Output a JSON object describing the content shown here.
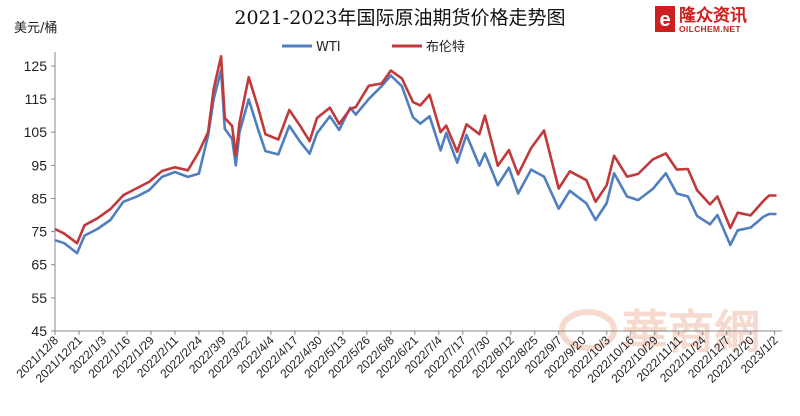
{
  "chart_data": {
    "type": "line",
    "title": "2021-2023年国际原油期货价格走势图",
    "ylabel": "美元/桶",
    "ylim": [
      45,
      128
    ],
    "yticks": [
      45,
      55,
      65,
      75,
      85,
      95,
      105,
      115,
      125
    ],
    "grid": false,
    "legend": "top-center",
    "x_tick_labels": [
      "2021/12/8",
      "2021/12/21",
      "2022/1/3",
      "2022/1/16",
      "2022/1/29",
      "2022/2/11",
      "2022/2/24",
      "2022/3/9",
      "2022/3/22",
      "2022/4/4",
      "2022/4/17",
      "2022/4/30",
      "2022/5/13",
      "2022/5/26",
      "2022/6/8",
      "2022/6/21",
      "2022/7/4",
      "2022/7/17",
      "2022/7/30",
      "2022/8/12",
      "2022/8/25",
      "2022/9/7",
      "2022/9/20",
      "2022/10/3",
      "2022/10/16",
      "2022/10/29",
      "2022/11/11",
      "2022/11/24",
      "2022/12/7",
      "2022/12/20",
      "2023/1/2"
    ],
    "x_start": "2021-12-08",
    "series": [
      {
        "name": "WTI",
        "color": "#4f7ec1",
        "points": [
          [
            "2021-12-08",
            72.4
          ],
          [
            "2021-12-13",
            71.5
          ],
          [
            "2021-12-20",
            68.5
          ],
          [
            "2021-12-24",
            73.8
          ],
          [
            "2021-12-31",
            75.8
          ],
          [
            "2022-01-07",
            78.5
          ],
          [
            "2022-01-14",
            84
          ],
          [
            "2022-01-21",
            85.5
          ],
          [
            "2022-01-28",
            87.5
          ],
          [
            "2022-02-04",
            91.5
          ],
          [
            "2022-02-11",
            93
          ],
          [
            "2022-02-18",
            91.5
          ],
          [
            "2022-02-24",
            92.5
          ],
          [
            "2022-03-01",
            104
          ],
          [
            "2022-03-04",
            115
          ],
          [
            "2022-03-08",
            123.7
          ],
          [
            "2022-03-10",
            106
          ],
          [
            "2022-03-14",
            103
          ],
          [
            "2022-03-16",
            95
          ],
          [
            "2022-03-18",
            105
          ],
          [
            "2022-03-23",
            114.9
          ],
          [
            "2022-03-28",
            105.9
          ],
          [
            "2022-04-01",
            99.3
          ],
          [
            "2022-04-08",
            98.3
          ],
          [
            "2022-04-14",
            106.9
          ],
          [
            "2022-04-20",
            102
          ],
          [
            "2022-04-25",
            98.5
          ],
          [
            "2022-04-29",
            104.7
          ],
          [
            "2022-05-06",
            109.8
          ],
          [
            "2022-05-11",
            105.7
          ],
          [
            "2022-05-17",
            112.4
          ],
          [
            "2022-05-20",
            110.3
          ],
          [
            "2022-05-27",
            115
          ],
          [
            "2022-06-03",
            118.9
          ],
          [
            "2022-06-08",
            122.1
          ],
          [
            "2022-06-14",
            118.9
          ],
          [
            "2022-06-20",
            109.5
          ],
          [
            "2022-06-24",
            107.6
          ],
          [
            "2022-06-29",
            109.8
          ],
          [
            "2022-07-05",
            99.5
          ],
          [
            "2022-07-08",
            104.8
          ],
          [
            "2022-07-14",
            95.8
          ],
          [
            "2022-07-19",
            104.2
          ],
          [
            "2022-07-26",
            94.9
          ],
          [
            "2022-07-29",
            98.6
          ],
          [
            "2022-08-05",
            89
          ],
          [
            "2022-08-11",
            94.3
          ],
          [
            "2022-08-16",
            86.5
          ],
          [
            "2022-08-23",
            93.7
          ],
          [
            "2022-08-30",
            91.6
          ],
          [
            "2022-09-07",
            81.9
          ],
          [
            "2022-09-13",
            87.3
          ],
          [
            "2022-09-22",
            83.5
          ],
          [
            "2022-09-27",
            78.5
          ],
          [
            "2022-10-03",
            83.6
          ],
          [
            "2022-10-07",
            92.6
          ],
          [
            "2022-10-14",
            85.6
          ],
          [
            "2022-10-20",
            84.5
          ],
          [
            "2022-10-28",
            87.9
          ],
          [
            "2022-11-04",
            92.6
          ],
          [
            "2022-11-10",
            86.5
          ],
          [
            "2022-11-16",
            85.6
          ],
          [
            "2022-11-21",
            79.7
          ],
          [
            "2022-11-28",
            77.2
          ],
          [
            "2022-12-02",
            80
          ],
          [
            "2022-12-09",
            71
          ],
          [
            "2022-12-13",
            75.4
          ],
          [
            "2022-12-20",
            76.2
          ],
          [
            "2022-12-27",
            79.5
          ],
          [
            "2022-12-30",
            80.3
          ],
          [
            "2023-01-03",
            80.3
          ]
        ]
      },
      {
        "name": "布伦特",
        "color": "#c0393b",
        "points": [
          [
            "2021-12-08",
            75.8
          ],
          [
            "2021-12-13",
            74.4
          ],
          [
            "2021-12-20",
            71.5
          ],
          [
            "2021-12-24",
            76.9
          ],
          [
            "2021-12-31",
            79
          ],
          [
            "2022-01-07",
            81.8
          ],
          [
            "2022-01-14",
            86
          ],
          [
            "2022-01-21",
            88
          ],
          [
            "2022-01-28",
            90
          ],
          [
            "2022-02-04",
            93.3
          ],
          [
            "2022-02-11",
            94.4
          ],
          [
            "2022-02-18",
            93.5
          ],
          [
            "2022-02-24",
            99.1
          ],
          [
            "2022-03-01",
            105
          ],
          [
            "2022-03-04",
            118.1
          ],
          [
            "2022-03-08",
            127.9
          ],
          [
            "2022-03-10",
            109.3
          ],
          [
            "2022-03-14",
            106.9
          ],
          [
            "2022-03-16",
            98
          ],
          [
            "2022-03-18",
            107.9
          ],
          [
            "2022-03-23",
            121.6
          ],
          [
            "2022-03-28",
            112.5
          ],
          [
            "2022-04-01",
            104.4
          ],
          [
            "2022-04-08",
            102.8
          ],
          [
            "2022-04-14",
            111.7
          ],
          [
            "2022-04-20",
            106.8
          ],
          [
            "2022-04-25",
            102.3
          ],
          [
            "2022-04-29",
            109.3
          ],
          [
            "2022-05-06",
            112.4
          ],
          [
            "2022-05-11",
            107.5
          ],
          [
            "2022-05-17",
            112
          ],
          [
            "2022-05-20",
            112.6
          ],
          [
            "2022-05-27",
            119
          ],
          [
            "2022-06-03",
            119.7
          ],
          [
            "2022-06-08",
            123.6
          ],
          [
            "2022-06-14",
            121.2
          ],
          [
            "2022-06-20",
            114.1
          ],
          [
            "2022-06-24",
            113.1
          ],
          [
            "2022-06-29",
            116.3
          ],
          [
            "2022-07-05",
            105
          ],
          [
            "2022-07-08",
            107
          ],
          [
            "2022-07-14",
            99.1
          ],
          [
            "2022-07-19",
            107.4
          ],
          [
            "2022-07-26",
            104.4
          ],
          [
            "2022-07-29",
            110
          ],
          [
            "2022-08-05",
            94.9
          ],
          [
            "2022-08-11",
            99.6
          ],
          [
            "2022-08-16",
            92.3
          ],
          [
            "2022-08-23",
            100.2
          ],
          [
            "2022-08-30",
            105.5
          ],
          [
            "2022-09-07",
            88
          ],
          [
            "2022-09-13",
            93.2
          ],
          [
            "2022-09-22",
            90.5
          ],
          [
            "2022-09-27",
            84
          ],
          [
            "2022-10-03",
            89
          ],
          [
            "2022-10-07",
            97.9
          ],
          [
            "2022-10-14",
            91.6
          ],
          [
            "2022-10-20",
            92.4
          ],
          [
            "2022-10-28",
            96.8
          ],
          [
            "2022-11-04",
            98.6
          ],
          [
            "2022-11-10",
            93.7
          ],
          [
            "2022-11-16",
            93.9
          ],
          [
            "2022-11-21",
            87.5
          ],
          [
            "2022-11-28",
            83.2
          ],
          [
            "2022-12-02",
            85.6
          ],
          [
            "2022-12-09",
            76.1
          ],
          [
            "2022-12-13",
            80.7
          ],
          [
            "2022-12-20",
            79.9
          ],
          [
            "2022-12-27",
            84.3
          ],
          [
            "2022-12-30",
            85.9
          ],
          [
            "2023-01-03",
            85.9
          ]
        ]
      }
    ]
  },
  "logo": {
    "name": "隆众资讯",
    "domain": "OILCHEM.NET",
    "mark": "e"
  },
  "watermark": {
    "text": "華商網"
  }
}
